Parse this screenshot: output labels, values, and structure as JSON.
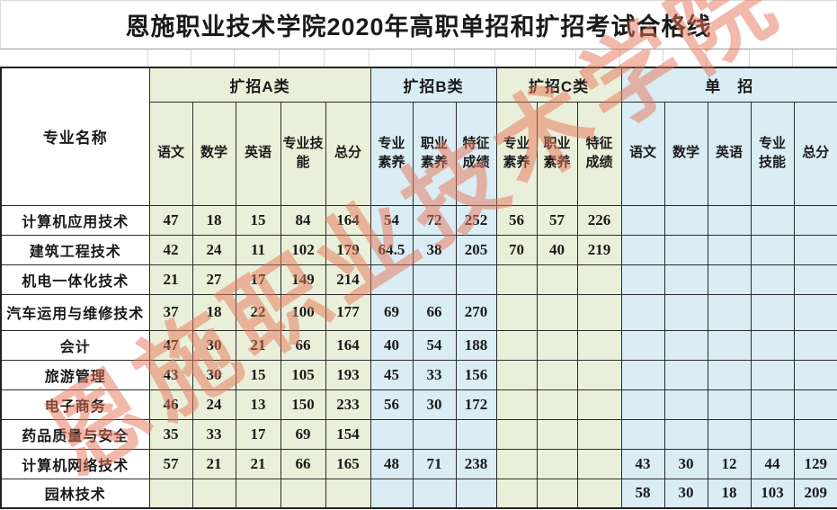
{
  "title": "恩施职业技术学院2020年高职单招和扩招考试合格线",
  "watermark": "恩施职业技术学院",
  "colors": {
    "group_green": "#eaefd9",
    "group_blue": "#daecf4",
    "watermark_red": "#e67658",
    "grid_dark": "#2b2b2b",
    "grid_light": "#d9d9d9"
  },
  "table": {
    "corner_header": "专业名称",
    "groups": [
      {
        "label": "扩招A类",
        "tone": "green",
        "columns": [
          "语文",
          "数学",
          "英语",
          "专业技能",
          "总分"
        ]
      },
      {
        "label": "扩招B类",
        "tone": "blue",
        "columns": [
          "专业素养",
          "职业素养",
          "特征成绩"
        ]
      },
      {
        "label": "扩招C类",
        "tone": "green",
        "columns": [
          "专业素养",
          "职业素养",
          "特征成绩"
        ]
      },
      {
        "label": "单　招",
        "tone": "blue",
        "columns": [
          "语文",
          "数学",
          "英语",
          "专业技能",
          "总分"
        ]
      }
    ],
    "rows": [
      {
        "major": "计算机应用技术",
        "values": [
          "47",
          "18",
          "15",
          "84",
          "164",
          "54",
          "72",
          "252",
          "56",
          "57",
          "226",
          "",
          "",
          "",
          "",
          ""
        ]
      },
      {
        "major": "建筑工程技术",
        "values": [
          "42",
          "24",
          "11",
          "102",
          "179",
          "64.5",
          "38",
          "205",
          "70",
          "40",
          "219",
          "",
          "",
          "",
          "",
          ""
        ]
      },
      {
        "major": "机电一体化技术",
        "values": [
          "21",
          "27",
          "17",
          "149",
          "214",
          "",
          "",
          "",
          "",
          "",
          "",
          "",
          "",
          "",
          "",
          ""
        ]
      },
      {
        "major": "汽车运用与维修技术",
        "values": [
          "37",
          "18",
          "22",
          "100",
          "177",
          "69",
          "66",
          "270",
          "",
          "",
          "",
          "",
          "",
          "",
          "",
          ""
        ]
      },
      {
        "major": "会计",
        "values": [
          "47",
          "30",
          "21",
          "66",
          "164",
          "40",
          "54",
          "188",
          "",
          "",
          "",
          "",
          "",
          "",
          "",
          ""
        ]
      },
      {
        "major": "旅游管理",
        "values": [
          "43",
          "30",
          "15",
          "105",
          "193",
          "45",
          "33",
          "156",
          "",
          "",
          "",
          "",
          "",
          "",
          "",
          ""
        ]
      },
      {
        "major": "电子商务",
        "values": [
          "46",
          "24",
          "13",
          "150",
          "233",
          "56",
          "30",
          "172",
          "",
          "",
          "",
          "",
          "",
          "",
          "",
          ""
        ]
      },
      {
        "major": "药品质量与安全",
        "values": [
          "35",
          "33",
          "17",
          "69",
          "154",
          "",
          "",
          "",
          "",
          "",
          "",
          "",
          "",
          "",
          "",
          ""
        ]
      },
      {
        "major": "计算机网络技术",
        "values": [
          "57",
          "21",
          "21",
          "66",
          "165",
          "48",
          "71",
          "238",
          "",
          "",
          "",
          "43",
          "30",
          "12",
          "44",
          "129"
        ]
      },
      {
        "major": "园林技术",
        "values": [
          "",
          "",
          "",
          "",
          "",
          "",
          "",
          "",
          "",
          "",
          "",
          "58",
          "30",
          "18",
          "103",
          "209"
        ]
      }
    ]
  }
}
